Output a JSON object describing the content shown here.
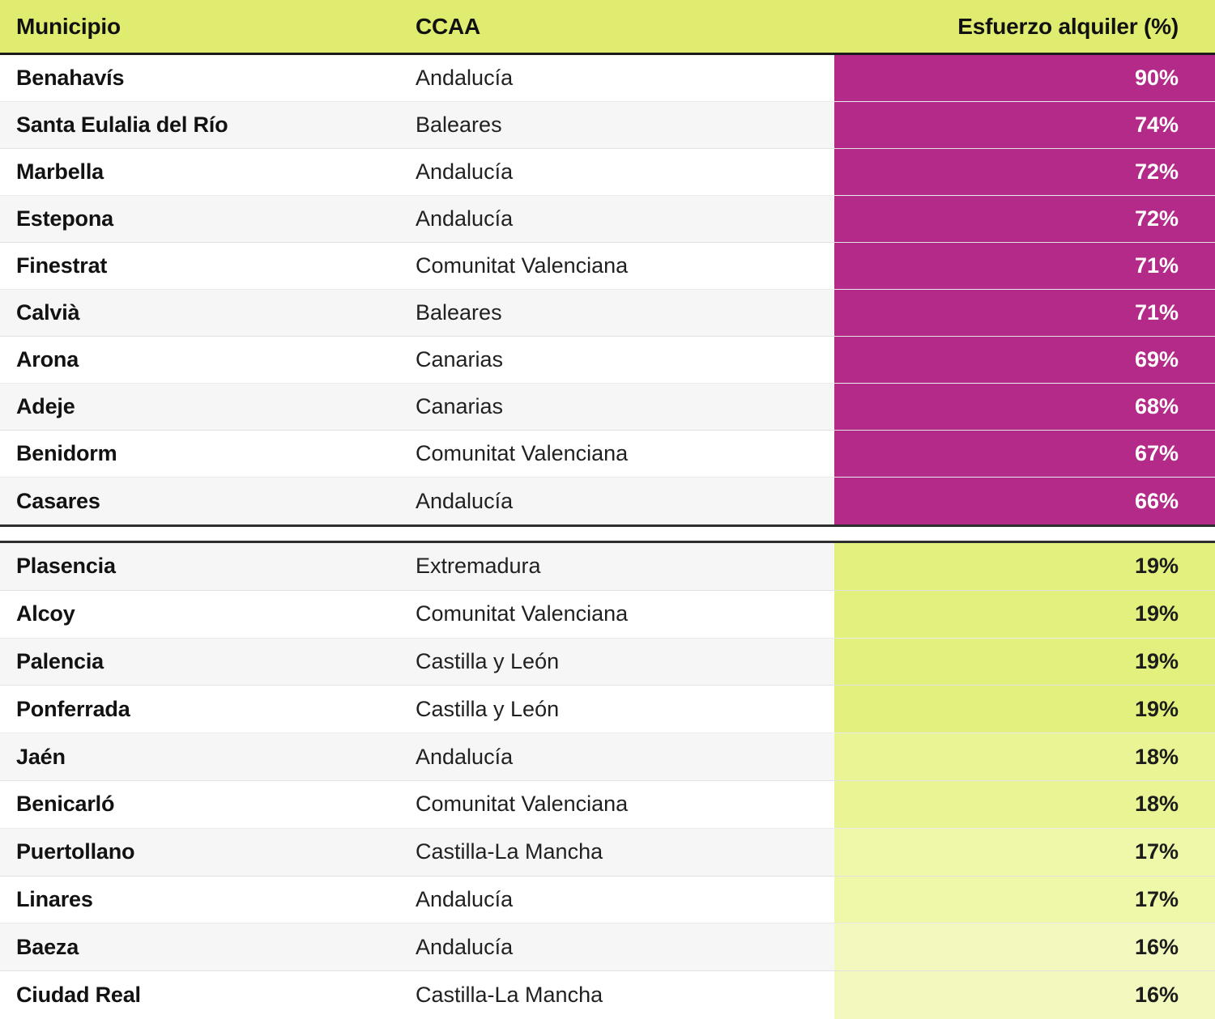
{
  "colors": {
    "header_bg": "#dfec70",
    "header_text": "#111111",
    "row_white": "#ffffff",
    "row_gray": "#f6f6f6",
    "divider_dark": "#2e2e2e",
    "magenta": "#b42a88",
    "lime_19": "#e3f07e",
    "lime_18": "#eaf494",
    "lime_17": "#eff7a8",
    "lime_16": "#f3f8bf"
  },
  "chart_data": {
    "type": "table",
    "columns": [
      "Municipio",
      "CCAA",
      "Esfuerzo alquiler (%)"
    ],
    "value_column_format": "percent",
    "groups": [
      {
        "id": "highest-rental-effort",
        "rows": [
          {
            "municipio": "Benahavís",
            "ccaa": "Andalucía",
            "value_pct": 90,
            "value_label": "90%",
            "cell_bg": "#b42a88",
            "cell_fg": "#ffffff"
          },
          {
            "municipio": "Santa Eulalia del Río",
            "ccaa": "Baleares",
            "value_pct": 74,
            "value_label": "74%",
            "cell_bg": "#b42a88",
            "cell_fg": "#ffffff"
          },
          {
            "municipio": "Marbella",
            "ccaa": "Andalucía",
            "value_pct": 72,
            "value_label": "72%",
            "cell_bg": "#b42a88",
            "cell_fg": "#ffffff"
          },
          {
            "municipio": "Estepona",
            "ccaa": "Andalucía",
            "value_pct": 72,
            "value_label": "72%",
            "cell_bg": "#b42a88",
            "cell_fg": "#ffffff"
          },
          {
            "municipio": "Finestrat",
            "ccaa": "Comunitat Valenciana",
            "value_pct": 71,
            "value_label": "71%",
            "cell_bg": "#b42a88",
            "cell_fg": "#ffffff"
          },
          {
            "municipio": "Calvià",
            "ccaa": "Baleares",
            "value_pct": 71,
            "value_label": "71%",
            "cell_bg": "#b42a88",
            "cell_fg": "#ffffff"
          },
          {
            "municipio": "Arona",
            "ccaa": "Canarias",
            "value_pct": 69,
            "value_label": "69%",
            "cell_bg": "#b42a88",
            "cell_fg": "#ffffff"
          },
          {
            "municipio": "Adeje",
            "ccaa": "Canarias",
            "value_pct": 68,
            "value_label": "68%",
            "cell_bg": "#b42a88",
            "cell_fg": "#ffffff"
          },
          {
            "municipio": "Benidorm",
            "ccaa": "Comunitat Valenciana",
            "value_pct": 67,
            "value_label": "67%",
            "cell_bg": "#b42a88",
            "cell_fg": "#ffffff"
          },
          {
            "municipio": "Casares",
            "ccaa": "Andalucía",
            "value_pct": 66,
            "value_label": "66%",
            "cell_bg": "#b42a88",
            "cell_fg": "#ffffff"
          }
        ]
      },
      {
        "id": "lowest-rental-effort",
        "rows": [
          {
            "municipio": "Plasencia",
            "ccaa": "Extremadura",
            "value_pct": 19,
            "value_label": "19%",
            "cell_bg": "#e3f07e",
            "cell_fg": "#1c1c1c"
          },
          {
            "municipio": "Alcoy",
            "ccaa": "Comunitat Valenciana",
            "value_pct": 19,
            "value_label": "19%",
            "cell_bg": "#e3f07e",
            "cell_fg": "#1c1c1c"
          },
          {
            "municipio": "Palencia",
            "ccaa": "Castilla y León",
            "value_pct": 19,
            "value_label": "19%",
            "cell_bg": "#e3f07e",
            "cell_fg": "#1c1c1c"
          },
          {
            "municipio": "Ponferrada",
            "ccaa": "Castilla y León",
            "value_pct": 19,
            "value_label": "19%",
            "cell_bg": "#e3f07e",
            "cell_fg": "#1c1c1c"
          },
          {
            "municipio": "Jaén",
            "ccaa": "Andalucía",
            "value_pct": 18,
            "value_label": "18%",
            "cell_bg": "#eaf494",
            "cell_fg": "#1c1c1c"
          },
          {
            "municipio": "Benicarló",
            "ccaa": "Comunitat Valenciana",
            "value_pct": 18,
            "value_label": "18%",
            "cell_bg": "#eaf494",
            "cell_fg": "#1c1c1c"
          },
          {
            "municipio": "Puertollano",
            "ccaa": "Castilla-La Mancha",
            "value_pct": 17,
            "value_label": "17%",
            "cell_bg": "#eff7a8",
            "cell_fg": "#1c1c1c"
          },
          {
            "municipio": "Linares",
            "ccaa": "Andalucía",
            "value_pct": 17,
            "value_label": "17%",
            "cell_bg": "#eff7a8",
            "cell_fg": "#1c1c1c"
          },
          {
            "municipio": "Baeza",
            "ccaa": "Andalucía",
            "value_pct": 16,
            "value_label": "16%",
            "cell_bg": "#f3f8bf",
            "cell_fg": "#1c1c1c"
          },
          {
            "municipio": "Ciudad Real",
            "ccaa": "Castilla-La Mancha",
            "value_pct": 16,
            "value_label": "16%",
            "cell_bg": "#f3f8bf",
            "cell_fg": "#1c1c1c"
          }
        ]
      }
    ]
  }
}
